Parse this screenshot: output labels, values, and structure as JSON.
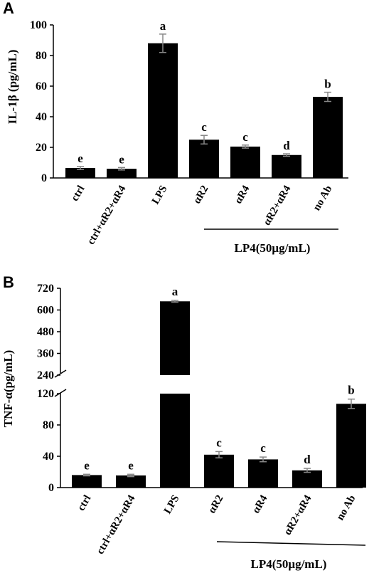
{
  "chart_data": [
    {
      "panel": "A",
      "type": "bar",
      "ylabel": "IL-1β (pg/mL)",
      "ylim": [
        0,
        100
      ],
      "yticks": [
        "0",
        "20",
        "40",
        "60",
        "80",
        "100"
      ],
      "categories": [
        "ctrl",
        "ctrl+αR2+αR4",
        "LPS",
        "αR2",
        "αR4",
        "αR2+αR4",
        "no Ab"
      ],
      "values": [
        6.5,
        6,
        88,
        25,
        20.5,
        15,
        53
      ],
      "errors": [
        1,
        0.8,
        6,
        2.8,
        1,
        0.8,
        3
      ],
      "labels": [
        "e",
        "e",
        "a",
        "c",
        "c",
        "d",
        "b"
      ],
      "group_label": "LP4(50μg/mL)",
      "grid": false,
      "bar_color": "#000000"
    },
    {
      "panel": "B",
      "type": "bar",
      "ylabel": "TNF-α(pg/mL)",
      "y_axis_break": true,
      "ylim_lower": [
        0,
        120
      ],
      "ylim_upper": [
        240,
        720
      ],
      "yticks_lower": [
        "0",
        "40",
        "80",
        "120"
      ],
      "yticks_upper": [
        "240",
        "360",
        "480",
        "600",
        "720"
      ],
      "categories": [
        "ctrl",
        "ctrl+αR2+αR4",
        "LPS",
        "αR2",
        "αR4",
        "αR2+αR4",
        "no Ab"
      ],
      "values": [
        16,
        15.5,
        648,
        42,
        36,
        22,
        107
      ],
      "errors": [
        1,
        1.5,
        5,
        4,
        3,
        2.5,
        6
      ],
      "labels": [
        "e",
        "e",
        "a",
        "c",
        "c",
        "d",
        "b"
      ],
      "group_label": "LP4(50μg/mL)",
      "grid": false,
      "bar_color": "#000000"
    }
  ]
}
